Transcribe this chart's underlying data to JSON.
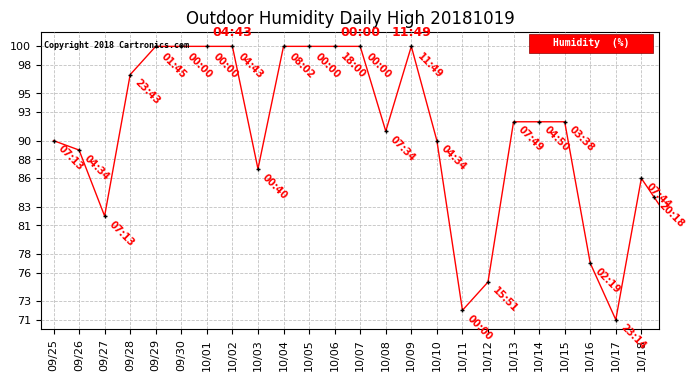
{
  "title": "Outdoor Humidity Daily High 20181019",
  "copyright": "Copyright 2018 Cartronics.com",
  "legend_label": "Humidity  (%)",
  "ylabel_ticks": [
    71,
    73,
    76,
    78,
    81,
    83,
    86,
    88,
    90,
    93,
    95,
    98,
    100
  ],
  "x_labels": [
    "09/25",
    "09/26",
    "09/27",
    "09/28",
    "09/29",
    "09/30",
    "10/01",
    "10/02",
    "10/03",
    "10/04",
    "10/05",
    "10/06",
    "10/07",
    "10/08",
    "10/09",
    "10/10",
    "10/11",
    "10/12",
    "10/13",
    "10/14",
    "10/15",
    "10/16",
    "10/17",
    "10/18"
  ],
  "points": [
    {
      "xi": 0,
      "y": 90,
      "label": "07:13"
    },
    {
      "xi": 1,
      "y": 89,
      "label": "04:34"
    },
    {
      "xi": 2,
      "y": 82,
      "label": "07:13"
    },
    {
      "xi": 3,
      "y": 97,
      "label": "23:43"
    },
    {
      "xi": 4,
      "y": 100,
      "label": "01:45"
    },
    {
      "xi": 5,
      "y": 100,
      "label": "00:00"
    },
    {
      "xi": 6,
      "y": 100,
      "label": "00:00"
    },
    {
      "xi": 7,
      "y": 100,
      "label": "04:43"
    },
    {
      "xi": 8,
      "y": 87,
      "label": "00:40"
    },
    {
      "xi": 9,
      "y": 100,
      "label": "08:02"
    },
    {
      "xi": 10,
      "y": 100,
      "label": "00:00"
    },
    {
      "xi": 11,
      "y": 100,
      "label": "18:00"
    },
    {
      "xi": 12,
      "y": 100,
      "label": "00:00"
    },
    {
      "xi": 13,
      "y": 91,
      "label": "07:34"
    },
    {
      "xi": 14,
      "y": 100,
      "label": "11:49"
    },
    {
      "xi": 15,
      "y": 90,
      "label": "04:34"
    },
    {
      "xi": 16,
      "y": 72,
      "label": "00:00"
    },
    {
      "xi": 17,
      "y": 75,
      "label": "15:51"
    },
    {
      "xi": 18,
      "y": 92,
      "label": "07:49"
    },
    {
      "xi": 19,
      "y": 92,
      "label": "04:50"
    },
    {
      "xi": 20,
      "y": 92,
      "label": "03:38"
    },
    {
      "xi": 21,
      "y": 77,
      "label": "02:19"
    },
    {
      "xi": 22,
      "y": 71,
      "label": "23:14"
    },
    {
      "xi": 23,
      "y": 86,
      "label": "07:44"
    },
    {
      "xi": 23.5,
      "y": 84,
      "label": "20:18"
    },
    {
      "xi": 24,
      "y": 82,
      "label": ""
    }
  ],
  "top_labels": [
    {
      "xi": 7,
      "label": "04:43"
    },
    {
      "xi": 12,
      "label": "00:00"
    },
    {
      "xi": 14,
      "label": "11:49"
    }
  ],
  "line_color": "red",
  "marker_color": "black",
  "grid_color": "#bbbbbb",
  "bg_color": "white",
  "ylim": [
    70,
    101.5
  ],
  "xlim": [
    -0.5,
    23.7
  ]
}
